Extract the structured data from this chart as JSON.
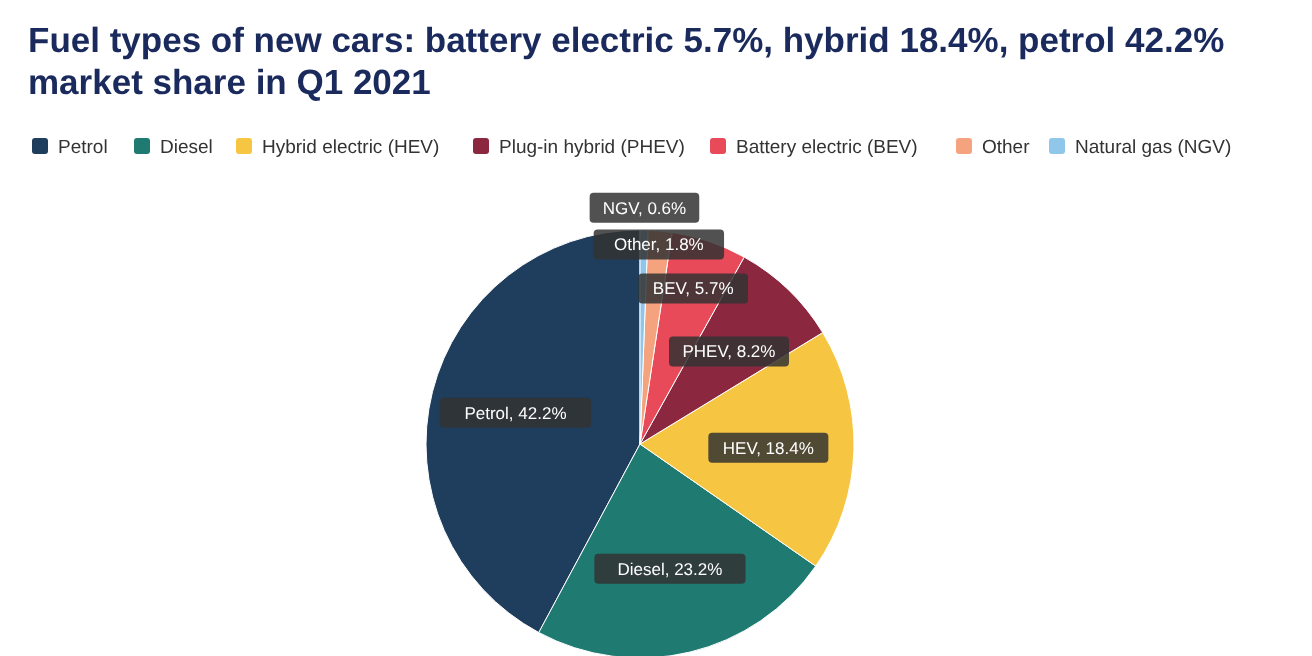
{
  "chart_data": {
    "type": "pie",
    "title": "Fuel types of new cars: battery electric 5.7%, hybrid 18.4%, petrol 42.2% market share in Q1 2021",
    "categories": [
      "Petrol",
      "Diesel",
      "Hybrid electric (HEV)",
      "Plug-in hybrid (PHEV)",
      "Battery electric (BEV)",
      "Other",
      "Natural gas (NGV)"
    ],
    "values": [
      42.2,
      23.2,
      18.4,
      8.2,
      5.7,
      1.8,
      0.6
    ],
    "colors": [
      "#1f3d5c",
      "#1f7a72",
      "#f6c541",
      "#8b2840",
      "#e84a5a",
      "#f5a27e",
      "#8fc6ea"
    ],
    "value_labels": [
      "Petrol, 42.2%",
      "Diesel, 23.2%",
      "HEV, 18.4%",
      "PHEV, 8.2%",
      "BEV, 5.7%",
      "Other, 1.8%",
      "NGV, 0.6%"
    ],
    "legend": "top"
  }
}
